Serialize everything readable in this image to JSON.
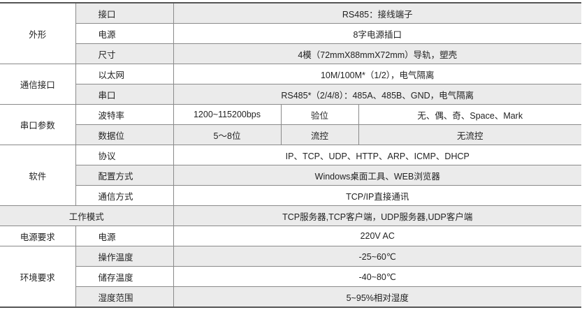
{
  "colors": {
    "shade": "#ebebeb",
    "line": "#8a8a8a",
    "border": "#555555"
  },
  "appearance": {
    "category": "外形",
    "rows": [
      {
        "label": "接口",
        "value": "RS485：接线端子"
      },
      {
        "label": "电源",
        "value": "8字电源插口"
      },
      {
        "label": "尺寸",
        "value": "4模（72mmX88mmX72mm）导轨，塑壳"
      }
    ]
  },
  "comm": {
    "category": "通信接口",
    "rows": [
      {
        "label": "以太网",
        "value": "10M/100M*（1/2），电气隔离"
      },
      {
        "label": "串口",
        "value": "RS485*（2/4/8）：485A、485B、GND，电气隔离"
      }
    ]
  },
  "serial": {
    "category": "串口参数",
    "rows": [
      {
        "label": "波特率",
        "value": "1200~115200bps",
        "label2": "验位",
        "value2": "无、偶、奇、Space、Mark"
      },
      {
        "label": "数据位",
        "value": "5～8位",
        "label2": "流控",
        "value2": "无流控"
      }
    ]
  },
  "software": {
    "category": "软件",
    "rows": [
      {
        "label": "协议",
        "value": "IP、TCP、UDP、HTTP、ARP、ICMP、DHCP"
      },
      {
        "label": "配置方式",
        "value": "Windows桌面工具、WEB浏览器"
      },
      {
        "label": "通信方式",
        "value": "TCP/IP直接通讯"
      }
    ]
  },
  "mode": {
    "label": "工作模式",
    "value": "TCP服务器,TCP客户端，UDP服务器,UDP客户端"
  },
  "power": {
    "category": "电源要求",
    "label": "电源",
    "value": "220V AC"
  },
  "env": {
    "category": "环境要求",
    "rows": [
      {
        "label": "操作温度",
        "value": "-25~60℃"
      },
      {
        "label": "储存温度",
        "value": "-40~80℃"
      },
      {
        "label": "湿度范围",
        "value": "5~95%相对湿度"
      }
    ]
  }
}
